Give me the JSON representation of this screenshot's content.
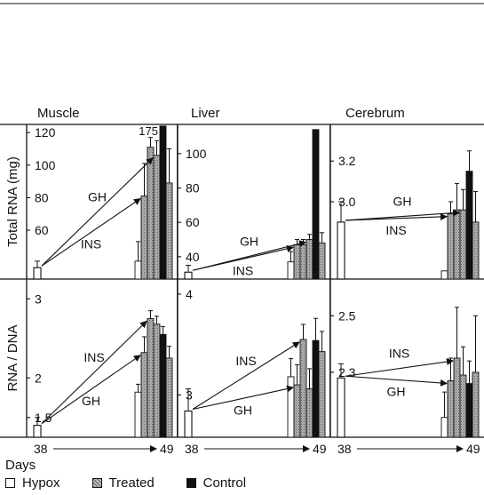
{
  "colors": {
    "hypox": "#ffffff",
    "treated": "#b0b0b0",
    "control": "#111111"
  },
  "chart_data": {
    "type": "bar",
    "legend": [
      "Hypox",
      "Treated",
      "Control"
    ],
    "x_label": "Days",
    "x_ticks": [
      "38",
      "49"
    ],
    "columns": [
      "Muscle",
      "Liver",
      "Cerebrum"
    ],
    "rows": [
      "Total RNA (mg)",
      "RNA / DNA"
    ],
    "panels": [
      {
        "row": 0,
        "col": 0,
        "ylim": [
          30,
          125
        ],
        "ticks": [
          120,
          100,
          80,
          60
        ],
        "tick_labels": [
          "120",
          "100",
          "80",
          "60"
        ],
        "day38": {
          "hypox": {
            "v": 37,
            "e": 4
          }
        },
        "day49": [
          {
            "key": "hypox",
            "v": 41,
            "e": 12
          },
          {
            "key": "treated",
            "v": 81,
            "e": 20
          },
          {
            "key": "treated",
            "v": 111,
            "e": 6
          },
          {
            "key": "treated",
            "v": 106,
            "e": 9
          },
          {
            "key": "control",
            "v": 124,
            "e": 0
          },
          {
            "key": "treated",
            "v": 89,
            "e": 21
          }
        ],
        "value_label": "175",
        "arrows": [
          {
            "to": 3,
            "label": "GH"
          },
          {
            "to": 1,
            "label": "INS"
          }
        ]
      },
      {
        "row": 0,
        "col": 1,
        "ylim": [
          27,
          117
        ],
        "ticks": [
          100,
          80,
          60,
          40
        ],
        "tick_labels": [
          "100",
          "80",
          "60",
          "40"
        ],
        "day38": {
          "hypox": {
            "v": 31,
            "e": 4
          }
        },
        "day49": [
          {
            "key": "hypox",
            "v": 37,
            "e": 6
          },
          {
            "key": "treated",
            "v": 47,
            "e": 3
          },
          {
            "key": "treated",
            "v": 47,
            "e": 3
          },
          {
            "key": "treated",
            "v": 50,
            "e": 3
          },
          {
            "key": "control",
            "v": 114,
            "e": 0
          },
          {
            "key": "treated",
            "v": 48,
            "e": 6
          }
        ],
        "arrows": [
          {
            "to": 3,
            "label": "GH"
          },
          {
            "to": 1,
            "label": "INS"
          }
        ]
      },
      {
        "row": 0,
        "col": 2,
        "ylim": [
          2.62,
          3.38
        ],
        "ticks": [
          3.2,
          3.0
        ],
        "tick_labels": [
          "3.2",
          "3.0"
        ],
        "day38": {
          "hypox": {
            "v": 2.9,
            "e": 0.1
          }
        },
        "day49": [
          {
            "key": "hypox",
            "v": 2.66,
            "e": 0
          },
          {
            "key": "treated",
            "v": 2.94,
            "e": 0.06
          },
          {
            "key": "treated",
            "v": 2.96,
            "e": 0.13
          },
          {
            "key": "treated",
            "v": 2.96,
            "e": 0.1
          },
          {
            "key": "control",
            "v": 3.15,
            "e": 0.1
          },
          {
            "key": "treated",
            "v": 2.9,
            "e": 0.15
          }
        ],
        "arrows": [
          {
            "to": 3,
            "label": "GH"
          },
          {
            "to": 1,
            "label": "INS"
          }
        ]
      },
      {
        "row": 1,
        "col": 0,
        "ylim": [
          1.25,
          3.25
        ],
        "ticks": [
          3,
          2,
          1.5
        ],
        "tick_labels": [
          "3",
          "2",
          "1.5"
        ],
        "day38": {
          "hypox": {
            "v": 1.4,
            "e": 0.1
          }
        },
        "day49": [
          {
            "key": "hypox",
            "v": 1.82,
            "e": 0.1
          },
          {
            "key": "treated",
            "v": 2.32,
            "e": 0.2
          },
          {
            "key": "treated",
            "v": 2.75,
            "e": 0.1
          },
          {
            "key": "treated",
            "v": 2.68,
            "e": 0.1
          },
          {
            "key": "control",
            "v": 2.55,
            "e": 0.1
          },
          {
            "key": "treated",
            "v": 2.25,
            "e": 0.15
          }
        ],
        "arrows": [
          {
            "to": 2,
            "label": "INS"
          },
          {
            "to": 1,
            "label": "GH"
          }
        ]
      },
      {
        "row": 1,
        "col": 1,
        "ylim": [
          2.58,
          4.15
        ],
        "ticks": [
          4,
          3
        ],
        "tick_labels": [
          "4",
          "3"
        ],
        "day38": {
          "hypox": {
            "v": 2.84,
            "e": 0.22
          }
        },
        "day49": [
          {
            "key": "hypox",
            "v": 3.18,
            "e": 0.18
          },
          {
            "key": "treated",
            "v": 3.1,
            "e": 0.2
          },
          {
            "key": "treated",
            "v": 3.55,
            "e": 0.15
          },
          {
            "key": "treated",
            "v": 3.06,
            "e": 0.2
          },
          {
            "key": "control",
            "v": 3.54,
            "e": 0.22
          },
          {
            "key": "treated",
            "v": 3.43,
            "e": 0.2
          }
        ],
        "arrows": [
          {
            "to": 2,
            "label": "INS"
          },
          {
            "to": 1,
            "label": "GH"
          }
        ]
      },
      {
        "row": 1,
        "col": 2,
        "ylim": [
          2.07,
          2.63
        ],
        "ticks": [
          2.5,
          2.3
        ],
        "tick_labels": [
          "2.5",
          "2.3"
        ],
        "day38": {
          "hypox": {
            "v": 2.28,
            "e": 0.05
          }
        },
        "day49": [
          {
            "key": "hypox",
            "v": 2.14,
            "e": 0.09
          },
          {
            "key": "treated",
            "v": 2.27,
            "e": 0.08
          },
          {
            "key": "treated",
            "v": 2.35,
            "e": 0.18
          },
          {
            "key": "treated",
            "v": 2.29,
            "e": 0.1
          },
          {
            "key": "control",
            "v": 2.26,
            "e": 0.08
          },
          {
            "key": "treated",
            "v": 2.3,
            "e": 0.2
          }
        ],
        "arrows": [
          {
            "to": 2,
            "label": "INS"
          },
          {
            "to": 1,
            "label": "GH"
          }
        ]
      }
    ]
  }
}
